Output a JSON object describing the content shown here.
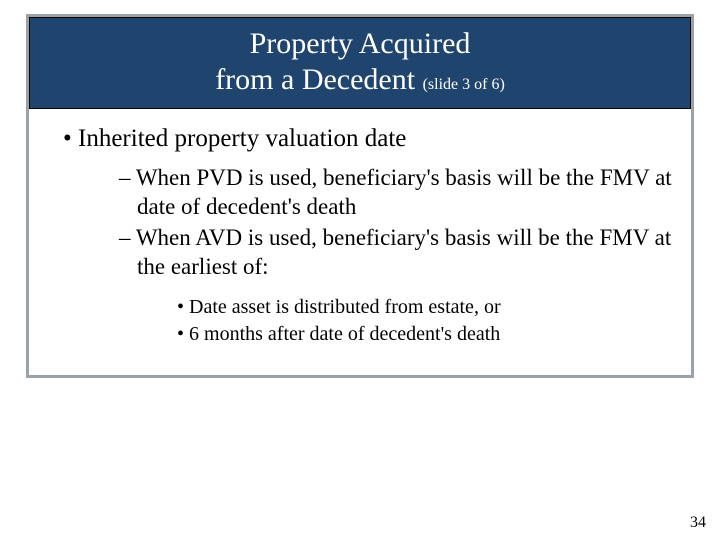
{
  "slide": {
    "title_line1": "Property Acquired",
    "title_line2_main": "from a Decedent ",
    "title_line2_sub": "(slide 3 of 6)",
    "page_number": "34",
    "colors": {
      "title_bg": "#1f456e",
      "title_text": "#ffffff",
      "frame_border": "#9aa1a8",
      "body_text": "#000000",
      "page_bg": "#ffffff"
    },
    "typography": {
      "family": "Times New Roman",
      "title_fontsize_pt": 30,
      "sub_fontsize_pt": 16,
      "lvl1_fontsize_pt": 25,
      "lvl2_fontsize_pt": 23,
      "lvl3_fontsize_pt": 20,
      "page_number_fontsize_pt": 16
    },
    "bullets": {
      "lvl1": [
        {
          "text": "Inherited property valuation date"
        }
      ],
      "lvl2": [
        {
          "text": "When PVD is used, beneficiary's basis will be the FMV at date of decedent's death"
        },
        {
          "text": "When AVD is used, beneficiary's basis will be the FMV at the earliest of:"
        }
      ],
      "lvl3": [
        {
          "text": "Date asset is distributed from estate, or"
        },
        {
          "text": "6 months after date of decedent's death"
        }
      ]
    }
  }
}
